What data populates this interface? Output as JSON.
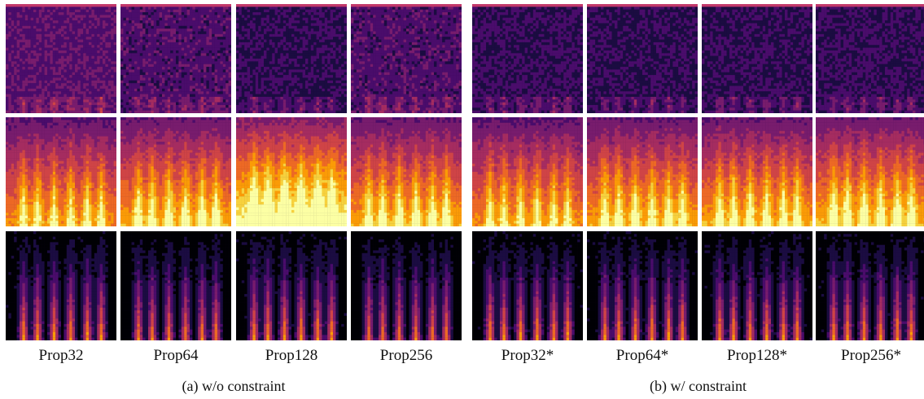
{
  "columns": [
    {
      "label": "Prop32",
      "group": "a"
    },
    {
      "label": "Prop64",
      "group": "a"
    },
    {
      "label": "Prop128",
      "group": "a"
    },
    {
      "label": "Prop256",
      "group": "a"
    },
    {
      "label": "Prop32*",
      "group": "b"
    },
    {
      "label": "Prop64*",
      "group": "b"
    },
    {
      "label": "Prop128*",
      "group": "b"
    },
    {
      "label": "Prop256*",
      "group": "b"
    }
  ],
  "captions": {
    "a": "(a) w/o constraint",
    "b": "(b) w/ constraint"
  },
  "rows": [
    {
      "name": "row-1",
      "intensity": [
        0.35,
        0.3,
        0.2,
        0.3,
        0.22,
        0.2,
        0.2,
        0.22
      ]
    },
    {
      "name": "row-2",
      "intensity": [
        0.7,
        0.75,
        0.95,
        0.75,
        0.7,
        0.75,
        0.75,
        0.78
      ]
    },
    {
      "name": "row-3",
      "intensity": [
        0.55,
        0.5,
        0.55,
        0.5,
        0.55,
        0.55,
        0.55,
        0.55
      ]
    }
  ],
  "colormap": [
    "#000004",
    "#1b0c41",
    "#4a0c6b",
    "#781c6d",
    "#a52c60",
    "#cf4446",
    "#ed6925",
    "#fb9b06",
    "#f7d13d",
    "#fcffa4"
  ]
}
